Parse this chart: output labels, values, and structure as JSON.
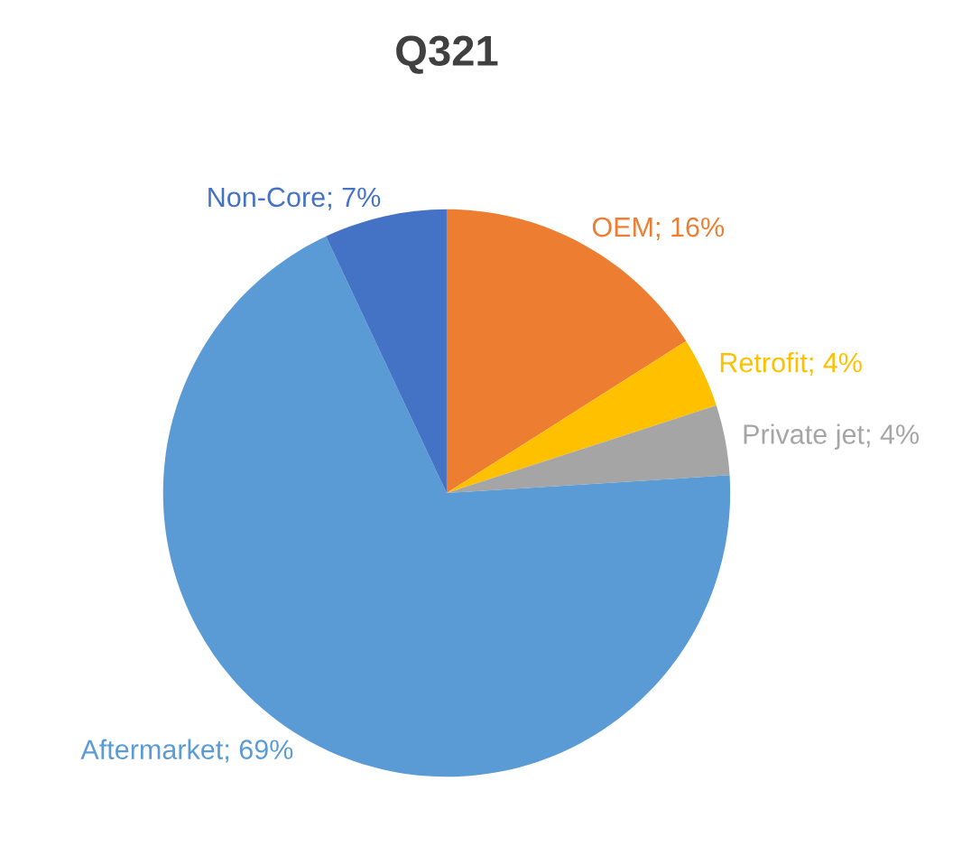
{
  "chart_data": {
    "type": "pie",
    "title": "Q321",
    "categories": [
      "OEM",
      "Retrofit",
      "Private jet",
      "Aftermarket",
      "Non-Core"
    ],
    "values": [
      16,
      4,
      4,
      69,
      7
    ],
    "value_labels": [
      "16%",
      "4%",
      "4%",
      "69%",
      "7%"
    ],
    "colors": [
      "#ed7d31",
      "#ffc000",
      "#a5a5a5",
      "#5b9bd5",
      "#4472c4"
    ],
    "legend": false
  }
}
